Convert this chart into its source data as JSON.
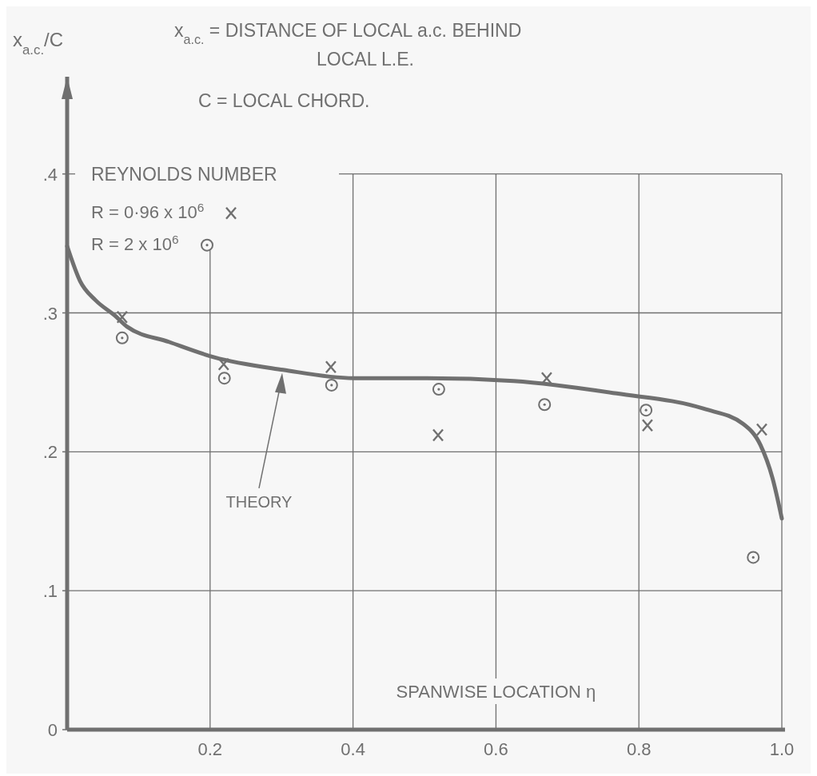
{
  "chart_data": {
    "type": "scatter",
    "ylabel": "x$_{a.c.}$/C",
    "xlabel": "SPANWISE LOCATION η",
    "annotations": [
      "x$_{a.c.}$ = DISTANCE OF LOCAL a.c. BEHIND LOCAL L.E.",
      "C = LOCAL CHORD.",
      "THEORY"
    ],
    "legend_title": "REYNOLDS NUMBER",
    "legend": "top left",
    "grid": true,
    "xlim": [
      0,
      1.0
    ],
    "ylim": [
      0,
      0.47
    ],
    "xticks": [
      {
        "value": 0,
        "label": null
      },
      0.2,
      0.4,
      0.6,
      0.8,
      {
        "value": 1.0,
        "label": "1.0"
      }
    ],
    "yticks": [
      0,
      {
        "value": 0.1,
        "label": ".1"
      },
      {
        "value": 0.2,
        "label": ".2"
      },
      {
        "value": 0.3,
        "label": ".3"
      },
      {
        "value": 0.4,
        "label": ".4"
      }
    ],
    "series": [
      {
        "name": "R = 0·96 x 10$^{6}$",
        "marker": "cross",
        "color": "#707070",
        "x": [
          0.077,
          0.219,
          0.369,
          0.519,
          0.671,
          0.812,
          0.972
        ],
        "values": [
          0.297,
          0.263,
          0.261,
          0.212,
          0.253,
          0.219,
          0.216
        ]
      },
      {
        "name": "R = 2 x 10$^{6}$",
        "marker": "circle",
        "color": "#707070",
        "x": [
          0.077,
          0.22,
          0.37,
          0.52,
          0.668,
          0.81,
          0.96
        ],
        "values": [
          0.282,
          0.253,
          0.248,
          0.245,
          0.234,
          0.23,
          0.124
        ]
      },
      {
        "type": "line",
        "marker": "none",
        "line_style": "solid",
        "color": "#707070",
        "x": [
          0,
          0.018,
          0.04,
          0.067,
          0.084,
          0.143,
          0.206,
          0.302,
          0.401,
          0.504,
          0.625,
          0.769,
          0.891,
          0.946,
          0.97,
          0.987,
          1.0
        ],
        "values": [
          0.348,
          0.323,
          0.309,
          0.298,
          0.29,
          0.279,
          0.268,
          0.259,
          0.253,
          0.253,
          0.251,
          0.242,
          0.231,
          0.22,
          0.205,
          0.181,
          0.152
        ]
      }
    ]
  }
}
